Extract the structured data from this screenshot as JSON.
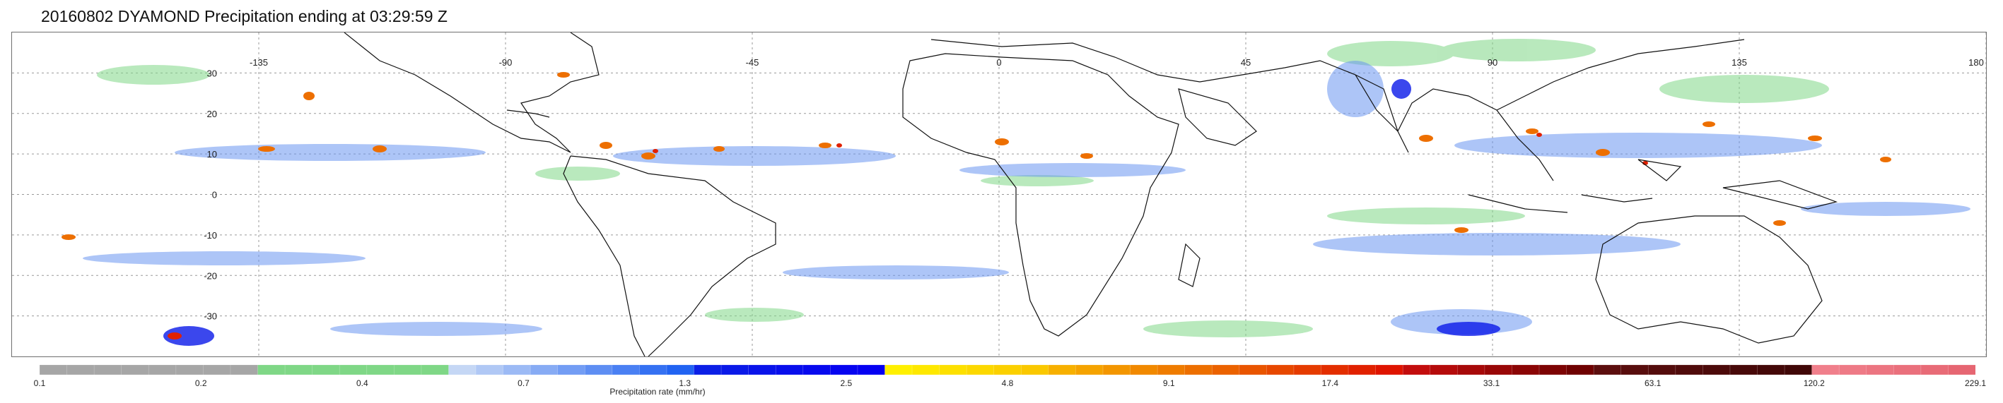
{
  "title": "20160802 DYAMOND Precipitation ending at 03:29:59 Z",
  "map": {
    "type": "precipitation-rate map",
    "projection": "equirectangular",
    "lon_range": [
      -180,
      180
    ],
    "lat_range": [
      -40,
      40
    ],
    "grid": true,
    "lon_labels": [
      {
        "value": -135,
        "text": "-135"
      },
      {
        "value": -90,
        "text": "-90"
      },
      {
        "value": -45,
        "text": "-45"
      },
      {
        "value": 0,
        "text": "0"
      },
      {
        "value": 45,
        "text": "45"
      },
      {
        "value": 90,
        "text": "90"
      },
      {
        "value": 135,
        "text": "135"
      },
      {
        "value": 180,
        "text": "180"
      }
    ],
    "lat_labels": [
      {
        "value": 30,
        "text": "30"
      },
      {
        "value": 20,
        "text": "20"
      },
      {
        "value": 10,
        "text": "10"
      },
      {
        "value": 0,
        "text": "0"
      },
      {
        "value": -10,
        "text": "-10"
      },
      {
        "value": -20,
        "text": "-20"
      },
      {
        "value": -30,
        "text": "-30"
      }
    ]
  },
  "colorbar": {
    "title": "Precipitation rate (mm/hr)",
    "label_values": [
      "0.1",
      "0.2",
      "0.4",
      "0.7",
      "1.3",
      "2.5",
      "4.8",
      "9.1",
      "17.4",
      "33.1",
      "63.1",
      "120.2",
      "229.1"
    ],
    "segment_colors": [
      "#a6a6a6",
      "#a6a6a6",
      "#a6a6a6",
      "#a6a6a6",
      "#a6a6a6",
      "#a6a6a6",
      "#a6a6a6",
      "#a6a6a6",
      "#7fd786",
      "#7fd786",
      "#7fd786",
      "#7fd786",
      "#7fd786",
      "#7fd786",
      "#7fd786",
      "#c5d7f5",
      "#b0c8f5",
      "#9cbaf5",
      "#87abf4",
      "#739df4",
      "#5e8ef3",
      "#4a80f3",
      "#3571f2",
      "#2163f2",
      "#0b1fe6",
      "#0a19e8",
      "#0913ea",
      "#080eec",
      "#0709ee",
      "#0604f0",
      "#0500f2",
      "#fff000",
      "#fee800",
      "#fde000",
      "#fcd800",
      "#fbd000",
      "#fac800",
      "#f7b000",
      "#f5a300",
      "#f39600",
      "#f18900",
      "#ef7c00",
      "#ed6f00",
      "#eb6200",
      "#e95500",
      "#e74800",
      "#e53b00",
      "#e32e00",
      "#e12100",
      "#df1400",
      "#c30d0d",
      "#b50b0b",
      "#a70909",
      "#990707",
      "#8b0505",
      "#7d0303",
      "#6f0101",
      "#5c0e0e",
      "#580d0d",
      "#540c0c",
      "#500b0b",
      "#4c0a0a",
      "#480909",
      "#440808",
      "#400707",
      "#f07f8b",
      "#ee7a86",
      "#ec7581",
      "#ea707c",
      "#e86b77",
      "#e66672"
    ]
  }
}
